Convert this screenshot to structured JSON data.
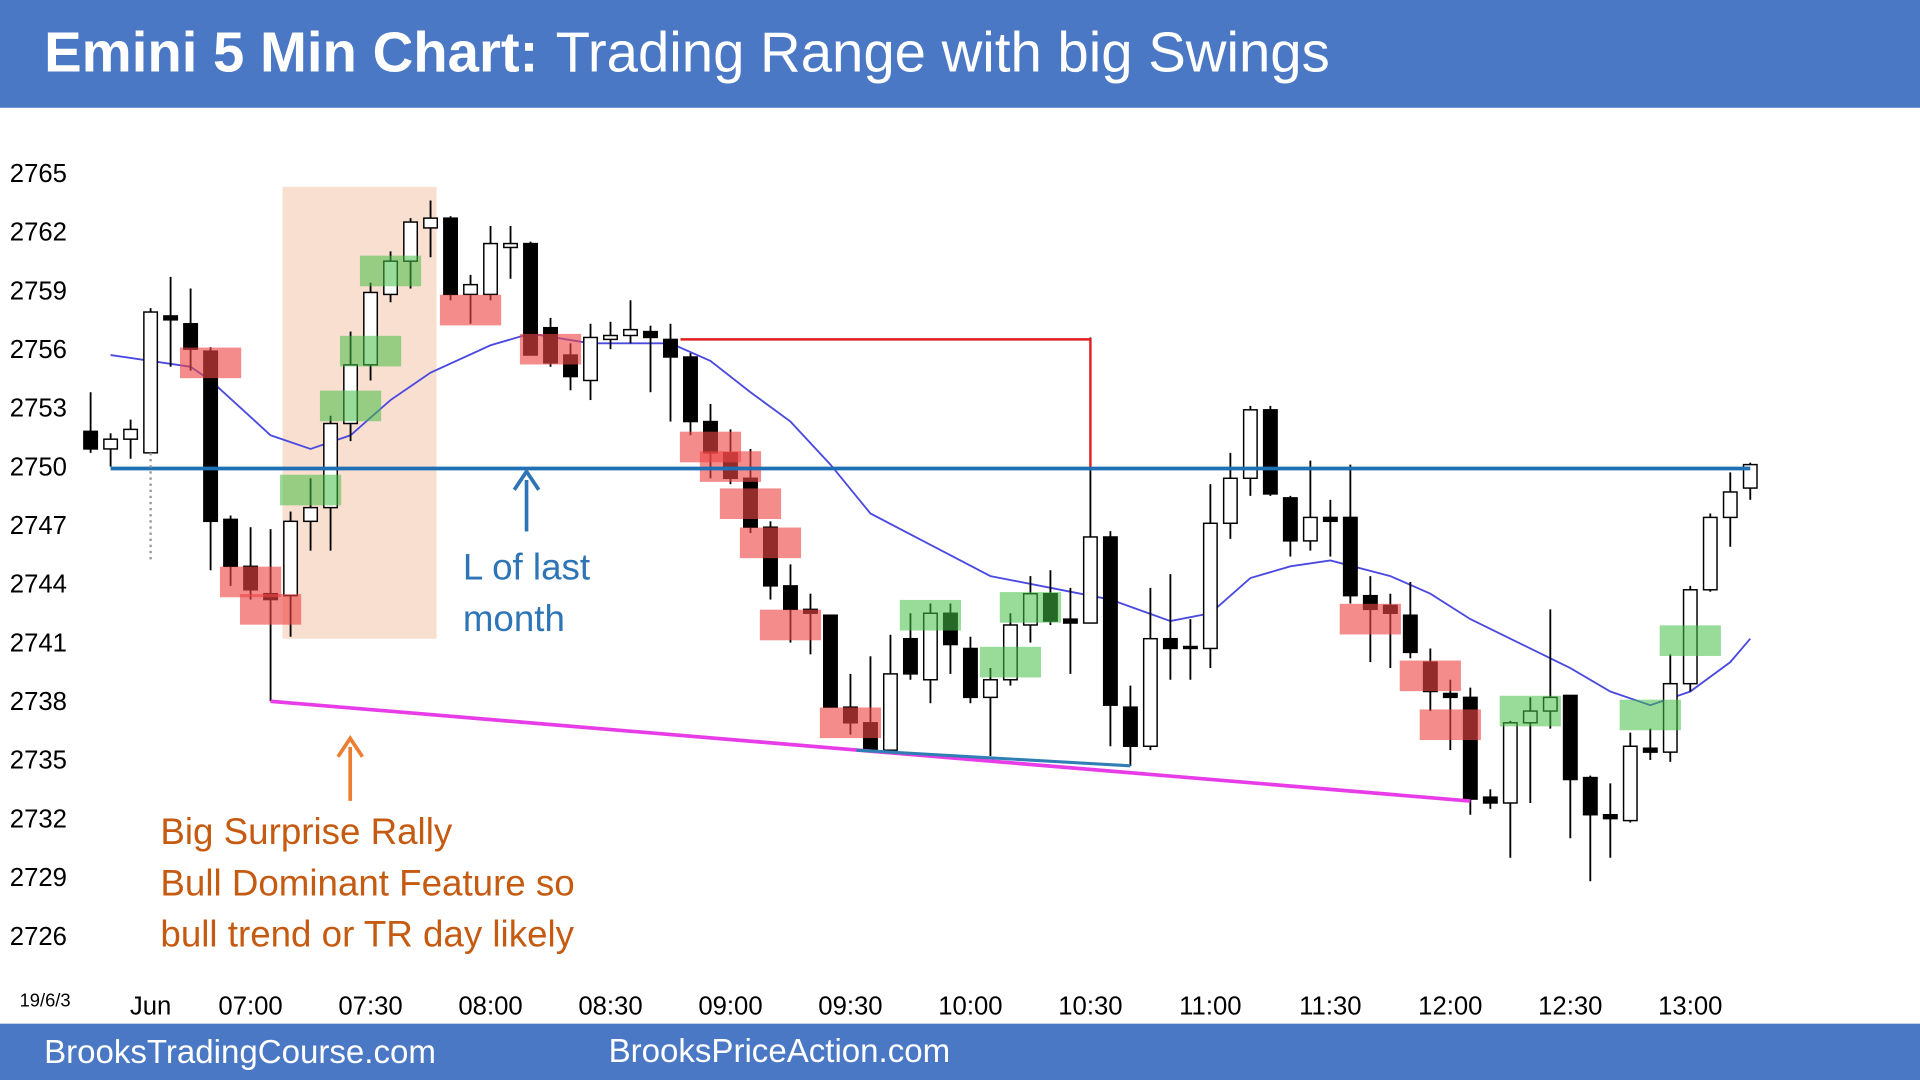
{
  "chart_data": {
    "type": "candlestick",
    "title": "Emini 5 Min Chart:",
    "subtitle": "Trading Range with big Swings",
    "date_label": "19/6/3",
    "categories": [
      null,
      null,
      null,
      "Jun",
      null,
      null,
      null,
      null,
      "07:00",
      null,
      null,
      null,
      null,
      null,
      "07:30",
      null,
      null,
      null,
      null,
      null,
      "08:00",
      null,
      null,
      null,
      null,
      null,
      "08:30",
      null,
      null,
      null,
      null,
      null,
      "09:00",
      null,
      null,
      null,
      null,
      null,
      "09:30",
      null,
      null,
      null,
      null,
      null,
      "10:00",
      null,
      null,
      null,
      null,
      null,
      "10:30",
      null,
      null,
      null,
      null,
      null,
      "11:00",
      null,
      null,
      null,
      null,
      null,
      "11:30",
      null,
      null,
      null,
      null,
      null,
      "12:00",
      null,
      null,
      null,
      null,
      null,
      "12:30",
      null,
      null,
      null,
      null,
      null,
      "13:00",
      null,
      null,
      null
    ],
    "open": [
      2751.9,
      2751.0,
      2751.5,
      2750.8,
      2757.8,
      2757.4,
      2756.0,
      2747.4,
      2745.0,
      2743.6,
      2743.5,
      2747.3,
      2748.0,
      2752.3,
      2755.3,
      2758.9,
      2760.6,
      2762.3,
      2762.8,
      2758.9,
      2758.9,
      2761.3,
      2761.5,
      2757.2,
      2755.8,
      2754.5,
      2756.6,
      2756.8,
      2757.0,
      2756.6,
      2755.7,
      2752.4,
      2750.8,
      2749.5,
      2747.0,
      2744.0,
      2742.8,
      2742.5,
      2737.8,
      2737.0,
      2735.6,
      2741.3,
      2739.2,
      2742.6,
      2740.8,
      2738.3,
      2739.2,
      2742.0,
      2743.6,
      2742.3,
      2742.1,
      2746.5,
      2737.8,
      2735.8,
      2741.3,
      2740.9,
      2740.8,
      2747.2,
      2749.5,
      2753.0,
      2748.5,
      2746.3,
      2747.5,
      2747.5,
      2743.5,
      2743.0,
      2742.5,
      2740.1,
      2738.5,
      2738.3,
      2733.2,
      2732.9,
      2737.0,
      2737.6,
      2738.4,
      2734.2,
      2732.3,
      2732.0,
      2735.7,
      2735.5,
      2739.0,
      2743.8,
      2747.5,
      2749.0
    ],
    "high": [
      2753.9,
      2751.8,
      2752.5,
      2758.2,
      2759.8,
      2759.2,
      2756.2,
      2747.6,
      2747.0,
      2746.9,
      2747.8,
      2749.5,
      2752.7,
      2757.0,
      2759.5,
      2761.1,
      2762.8,
      2763.7,
      2762.9,
      2759.9,
      2762.4,
      2762.4,
      2761.6,
      2757.7,
      2756.4,
      2757.4,
      2757.5,
      2758.6,
      2757.3,
      2757.4,
      2755.9,
      2753.3,
      2752.0,
      2751.0,
      2747.3,
      2745.1,
      2743.6,
      2742.5,
      2739.5,
      2740.4,
      2741.5,
      2742.6,
      2743.1,
      2743.1,
      2741.4,
      2739.8,
      2742.6,
      2744.5,
      2744.8,
      2743.9,
      2756.7,
      2746.8,
      2738.9,
      2743.9,
      2744.6,
      2742.3,
      2749.2,
      2750.8,
      2753.2,
      2753.2,
      2748.6,
      2750.4,
      2748.4,
      2750.2,
      2744.5,
      2743.6,
      2744.2,
      2740.8,
      2739.2,
      2738.8,
      2733.6,
      2737.1,
      2738.3,
      2742.8,
      2738.4,
      2734.3,
      2733.9,
      2736.5,
      2736.7,
      2740.5,
      2744.0,
      2747.7,
      2749.8,
      2750.3
    ],
    "low": [
      2750.8,
      2750.1,
      2750.5,
      2750.8,
      2755.2,
      2755.0,
      2744.8,
      2744.0,
      2743.3,
      2738.1,
      2741.4,
      2745.8,
      2745.8,
      2751.4,
      2754.5,
      2758.5,
      2759.2,
      2760.8,
      2758.6,
      2757.4,
      2758.6,
      2759.7,
      2755.8,
      2755.2,
      2754.0,
      2753.5,
      2756.1,
      2756.4,
      2753.9,
      2752.4,
      2751.7,
      2749.5,
      2749.2,
      2746.7,
      2743.3,
      2741.1,
      2740.5,
      2737.8,
      2736.4,
      2735.6,
      2735.4,
      2739.2,
      2738.0,
      2739.5,
      2738.0,
      2735.3,
      2738.9,
      2741.1,
      2742.0,
      2739.5,
      2742.1,
      2735.8,
      2734.8,
      2735.6,
      2739.2,
      2739.2,
      2739.8,
      2746.4,
      2748.6,
      2748.6,
      2745.5,
      2745.8,
      2745.5,
      2743.1,
      2740.1,
      2739.8,
      2740.3,
      2737.6,
      2735.6,
      2732.3,
      2732.6,
      2730.1,
      2732.9,
      2736.7,
      2731.1,
      2728.9,
      2730.1,
      2731.9,
      2735.1,
      2735.0,
      2738.6,
      2743.7,
      2746.0,
      2748.4
    ],
    "close": [
      2751.0,
      2751.5,
      2752.0,
      2758.0,
      2757.6,
      2756.1,
      2747.3,
      2745.0,
      2743.8,
      2743.3,
      2747.3,
      2748.0,
      2752.3,
      2755.3,
      2759.0,
      2760.6,
      2762.6,
      2762.8,
      2758.9,
      2759.4,
      2761.5,
      2761.5,
      2755.8,
      2755.4,
      2754.7,
      2756.7,
      2756.8,
      2757.1,
      2756.7,
      2755.7,
      2752.4,
      2750.8,
      2749.5,
      2747.0,
      2744.0,
      2742.8,
      2742.6,
      2737.8,
      2737.0,
      2735.6,
      2739.5,
      2739.5,
      2742.6,
      2741.0,
      2738.3,
      2739.2,
      2742.0,
      2743.6,
      2742.2,
      2742.1,
      2746.5,
      2737.9,
      2735.8,
      2741.3,
      2740.8,
      2740.8,
      2747.2,
      2749.5,
      2753.0,
      2748.7,
      2746.3,
      2747.5,
      2747.3,
      2743.5,
      2742.8,
      2742.6,
      2740.6,
      2738.6,
      2738.3,
      2733.1,
      2732.9,
      2737.0,
      2737.6,
      2738.3,
      2734.1,
      2732.3,
      2732.1,
      2735.8,
      2735.5,
      2739.0,
      2743.8,
      2747.5,
      2748.8,
      2750.2
    ],
    "up_color": "#ffffff",
    "down_color": "#000000",
    "ylim": [
      2726,
      2765
    ],
    "yticks": [
      2726,
      2729,
      2732,
      2735,
      2738,
      2741,
      2744,
      2747,
      2750,
      2753,
      2756,
      2759,
      2762,
      2765
    ],
    "moving_average": {
      "color": "#4a4ae0",
      "x": [
        1,
        5,
        6,
        9,
        11,
        13,
        15,
        17,
        20,
        22,
        25,
        29,
        31,
        33,
        35,
        37,
        39,
        42,
        45,
        48,
        51,
        54,
        56,
        58,
        60,
        62,
        65,
        67,
        69,
        71,
        74,
        76,
        78,
        80,
        82,
        83
      ],
      "values": [
        2755.8,
        2755.2,
        2754.5,
        2751.7,
        2751.0,
        2751.7,
        2753.5,
        2754.9,
        2756.3,
        2756.9,
        2756.4,
        2756.4,
        2755.5,
        2753.9,
        2752.4,
        2750.2,
        2747.7,
        2746.1,
        2744.5,
        2743.9,
        2743.3,
        2742.2,
        2742.6,
        2744.4,
        2745.0,
        2745.3,
        2744.5,
        2743.6,
        2742.3,
        2741.3,
        2739.8,
        2738.6,
        2737.9,
        2738.6,
        2740.1,
        2741.3
      ]
    },
    "zone": {
      "x": [
        9.6,
        17.3
      ],
      "values": [
        2764.4,
        2741.3
      ],
      "color": "#f8dfcf"
    },
    "lines": [
      {
        "x": [
          1,
          83
        ],
        "values": [
          2750,
          2750
        ],
        "color": "#1f6fb5",
        "width": 3
      },
      {
        "x": [
          29.5,
          50,
          50
        ],
        "values": [
          2756.6,
          2756.6,
          2750.1
        ],
        "color": "#e02020",
        "width": 2
      },
      {
        "x": [
          9,
          69
        ],
        "values": [
          2738.1,
          2733.0
        ],
        "color": "#e83ce8",
        "width": 3
      },
      {
        "x": [
          38.3,
          52
        ],
        "values": [
          2735.6,
          2734.8
        ],
        "color": "#2f7fb5",
        "width": 2.5
      },
      {
        "x": [
          3,
          3
        ],
        "values": [
          2750.8,
          2745.3
        ],
        "color": "#9a9a9a",
        "width": 2,
        "dashed": true
      }
    ],
    "bear_signals": {
      "color": "rgba(238,70,70,0.62)",
      "x": [
        6,
        19,
        8,
        9,
        23,
        31,
        32,
        33,
        34,
        35,
        38,
        64,
        67,
        68
      ],
      "values": [
        2755.4,
        2758.1,
        2744.2,
        2742.8,
        2756.1,
        2751.1,
        2750.1,
        2748.2,
        2746.2,
        2742.0,
        2737.0,
        2742.3,
        2739.4,
        2736.9
      ]
    },
    "bull_signals": {
      "color": "rgba(70,190,70,0.55)",
      "x": [
        11,
        13,
        14,
        15,
        42,
        46,
        47,
        72,
        78,
        80
      ],
      "values": [
        2748.9,
        2753.2,
        2756.0,
        2760.1,
        2742.5,
        2740.1,
        2742.9,
        2737.6,
        2737.4,
        2741.2
      ]
    },
    "annotations": [
      {
        "lines": [
          "L of last",
          "month"
        ],
        "color": "#2e75b6"
      },
      {
        "lines": [
          "Big Surprise Rally",
          "Bull Dominant Feature so",
          "bull trend or TR day likely"
        ],
        "color": "#c55a11"
      }
    ]
  },
  "footer": {
    "left": "BrooksTradingCourse.com",
    "right": "BrooksPriceAction.com"
  }
}
